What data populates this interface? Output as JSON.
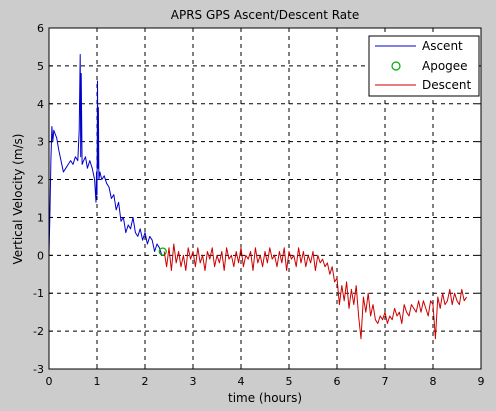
{
  "chart_data": {
    "type": "line",
    "title": "APRS GPS Ascent/Descent Rate",
    "xlabel": "time (hours)",
    "ylabel": "Vertical Velocity (m/s)",
    "xlim": [
      0,
      9
    ],
    "ylim": [
      -3,
      6
    ],
    "x_ticks": [
      "0",
      "1",
      "2",
      "3",
      "4",
      "5",
      "6",
      "7",
      "8",
      "9"
    ],
    "y_ticks": [
      "-3",
      "-2",
      "-1",
      "0",
      "1",
      "2",
      "3",
      "4",
      "5",
      "6"
    ],
    "grid": true,
    "legend_position": "top-right",
    "colors": {
      "ascent": "#0000cc",
      "apogee": "#00aa00",
      "descent": "#cc0000"
    },
    "series": [
      {
        "name": "Ascent",
        "style": "line",
        "color": "#0000cc",
        "x": [
          0,
          0.02,
          0.04,
          0.06,
          0.08,
          0.1,
          0.13,
          0.16,
          0.2,
          0.25,
          0.3,
          0.35,
          0.4,
          0.45,
          0.5,
          0.55,
          0.6,
          0.63,
          0.65,
          0.66,
          0.67,
          0.69,
          0.72,
          0.76,
          0.8,
          0.85,
          0.9,
          0.95,
          0.98,
          0.99,
          1.0,
          1.01,
          1.02,
          1.03,
          1.04,
          1.06,
          1.1,
          1.15,
          1.2,
          1.25,
          1.3,
          1.35,
          1.4,
          1.45,
          1.5,
          1.55,
          1.6,
          1.65,
          1.7,
          1.75,
          1.8,
          1.85,
          1.9,
          1.95,
          2.0,
          2.05,
          2.1,
          2.15,
          2.2,
          2.25,
          2.3,
          2.35
        ],
        "y": [
          0,
          1.2,
          2.5,
          3.4,
          3.0,
          3.3,
          3.2,
          3.1,
          2.8,
          2.5,
          2.2,
          2.3,
          2.4,
          2.5,
          2.4,
          2.6,
          2.5,
          3.3,
          5.3,
          2.6,
          4.8,
          2.4,
          2.5,
          2.6,
          2.3,
          2.5,
          2.3,
          2.0,
          1.4,
          2.2,
          1.6,
          4.6,
          2.3,
          3.9,
          2.0,
          2.2,
          2.0,
          2.1,
          1.9,
          1.8,
          1.5,
          1.6,
          1.2,
          1.4,
          0.9,
          1.0,
          0.6,
          0.8,
          0.7,
          1.0,
          0.6,
          0.5,
          0.7,
          0.4,
          0.6,
          0.3,
          0.5,
          0.4,
          0.1,
          0.3,
          0.2,
          0.0
        ]
      },
      {
        "name": "Apogee",
        "style": "marker",
        "color": "#00aa00",
        "x": [
          2.37
        ],
        "y": [
          0.1
        ]
      },
      {
        "name": "Descent",
        "style": "line",
        "color": "#cc0000",
        "x": [
          2.4,
          2.45,
          2.5,
          2.55,
          2.6,
          2.65,
          2.7,
          2.75,
          2.8,
          2.85,
          2.9,
          2.95,
          3.0,
          3.05,
          3.1,
          3.15,
          3.2,
          3.25,
          3.3,
          3.35,
          3.4,
          3.45,
          3.5,
          3.55,
          3.6,
          3.65,
          3.7,
          3.75,
          3.8,
          3.85,
          3.9,
          3.95,
          4.0,
          4.05,
          4.1,
          4.15,
          4.2,
          4.25,
          4.3,
          4.35,
          4.4,
          4.45,
          4.5,
          4.55,
          4.6,
          4.65,
          4.7,
          4.75,
          4.8,
          4.85,
          4.9,
          4.95,
          5.0,
          5.05,
          5.1,
          5.15,
          5.2,
          5.25,
          5.3,
          5.35,
          5.4,
          5.45,
          5.5,
          5.55,
          5.6,
          5.65,
          5.7,
          5.75,
          5.8,
          5.85,
          5.9,
          5.95,
          6.0,
          6.05,
          6.1,
          6.15,
          6.2,
          6.25,
          6.3,
          6.35,
          6.4,
          6.45,
          6.5,
          6.55,
          6.6,
          6.65,
          6.7,
          6.75,
          6.8,
          6.85,
          6.9,
          6.95,
          7.0,
          7.05,
          7.1,
          7.15,
          7.2,
          7.25,
          7.3,
          7.35,
          7.4,
          7.45,
          7.5,
          7.55,
          7.6,
          7.65,
          7.7,
          7.75,
          7.8,
          7.85,
          7.9,
          7.95,
          8.0,
          8.05,
          8.1,
          8.15,
          8.2,
          8.25,
          8.3,
          8.35,
          8.4,
          8.45,
          8.5,
          8.55,
          8.6,
          8.65,
          8.7
        ],
        "y": [
          0.1,
          -0.3,
          0.2,
          -0.4,
          0.3,
          -0.2,
          0.1,
          -0.3,
          0.0,
          -0.4,
          0.2,
          -0.1,
          0.1,
          -0.3,
          0.2,
          -0.2,
          0.0,
          -0.4,
          0.1,
          -0.1,
          0.2,
          -0.3,
          0.0,
          -0.2,
          0.1,
          -0.4,
          0.2,
          -0.1,
          0.0,
          -0.3,
          0.1,
          -0.2,
          0.2,
          -0.3,
          0.0,
          -0.1,
          0.1,
          -0.4,
          0.2,
          -0.2,
          0.0,
          -0.3,
          0.1,
          -0.2,
          0.2,
          -0.1,
          0.0,
          -0.3,
          0.1,
          -0.2,
          0.2,
          -0.4,
          0.1,
          -0.1,
          0.0,
          -0.3,
          0.2,
          -0.2,
          0.1,
          -0.3,
          0.0,
          -0.2,
          0.1,
          -0.4,
          0.0,
          -0.2,
          -0.1,
          -0.3,
          -0.2,
          -0.5,
          -0.3,
          -0.7,
          -0.6,
          -1.3,
          -0.8,
          -1.2,
          -0.7,
          -1.4,
          -0.9,
          -1.3,
          -0.8,
          -1.6,
          -2.2,
          -1.1,
          -1.5,
          -1.0,
          -1.6,
          -1.3,
          -1.7,
          -1.8,
          -1.6,
          -1.7,
          -1.5,
          -1.8,
          -1.6,
          -1.7,
          -1.4,
          -1.6,
          -1.5,
          -1.8,
          -1.3,
          -1.5,
          -1.6,
          -1.3,
          -1.4,
          -1.5,
          -1.2,
          -1.5,
          -1.2,
          -1.4,
          -1.6,
          -1.2,
          -1.3,
          -2.2,
          -1.1,
          -1.4,
          -1.0,
          -1.3,
          -1.2,
          -0.9,
          -1.3,
          -1.0,
          -1.2,
          -1.3,
          -0.9,
          -1.2,
          -1.1
        ]
      }
    ]
  }
}
